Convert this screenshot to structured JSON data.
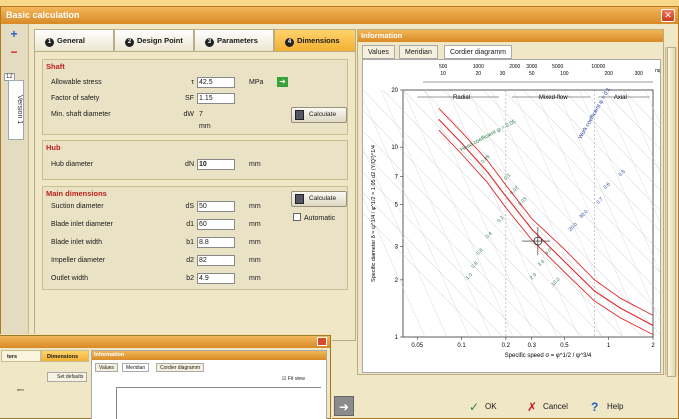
{
  "window": {
    "title": "Basic calculation",
    "close_glyph": "✕"
  },
  "lefttool": {
    "add": "+",
    "remove": "−",
    "version_counter": "12",
    "version_tab": "Version 1"
  },
  "tabs": [
    {
      "num": "1",
      "label": "General"
    },
    {
      "num": "2",
      "label": "Design Point"
    },
    {
      "num": "3",
      "label": "Parameters"
    },
    {
      "num": "4",
      "label": "Dimensions"
    }
  ],
  "shaft": {
    "title": "Shaft",
    "stress": {
      "label": "Allowable stress",
      "sym": "τ",
      "value": "42.5",
      "unit": "MPa"
    },
    "safety": {
      "label": "Factor of safety",
      "sym": "SF",
      "value": "1.15"
    },
    "min_diam": {
      "label": "Min. shaft diameter",
      "sym": "dW",
      "value": "7 mm"
    },
    "calc_label": "Calculate"
  },
  "hub": {
    "title": "Hub",
    "diameter": {
      "label": "Hub diameter",
      "sym": "dN",
      "value": "10",
      "unit": "mm"
    }
  },
  "main": {
    "title": "Main dimensions",
    "calc_label": "Calculate",
    "automatic_label": "Automatic",
    "rows": [
      {
        "label": "Suction diameter",
        "sym": "dS",
        "value": "50",
        "unit": "mm"
      },
      {
        "label": "Blade inlet diameter",
        "sym": "d1",
        "value": "60",
        "unit": "mm"
      },
      {
        "label": "Blade inlet width",
        "sym": "b1",
        "value": "8.8",
        "unit": "mm"
      },
      {
        "label": "Impeller diameter",
        "sym": "d2",
        "value": "82",
        "unit": "mm"
      },
      {
        "label": "Outlet width",
        "sym": "b2",
        "value": "4.9",
        "unit": "mm"
      }
    ]
  },
  "info": {
    "title": "Information",
    "tabs": [
      "Values",
      "Meridian",
      "Cordier diagramm"
    ]
  },
  "chart_data": {
    "type": "line",
    "xlabel": "Specific speed σ = φ^1/2 / ψ^3/4",
    "ylabel": "Specific diameter δ = ψ^1/4 / φ^1/2 = 1.05 d2 (Y/Q²)^1/4",
    "xscale": "log",
    "yscale": "log",
    "xlim": [
      0.04,
      2
    ],
    "ylim": [
      1,
      20
    ],
    "x_ticks": [
      "0.05",
      "0.1",
      "0.2",
      "0.3",
      "0.5",
      "1",
      "2"
    ],
    "y_ticks": [
      "1",
      "2",
      "3",
      "5",
      "7",
      "10",
      "20"
    ],
    "top_axis": {
      "label": "nq",
      "upper": [
        "500",
        "1000",
        "2000",
        "3000",
        "5000",
        "10000"
      ],
      "lower": [
        "10",
        "20",
        "30",
        "50",
        "100",
        "200",
        "300"
      ]
    },
    "regions": [
      "Radial",
      "Mixed-flow",
      "Axial"
    ],
    "annotations": [
      "Head coefficient ψ = 0.05",
      "Work coefficient ψ = 0.1"
    ],
    "curve_labels": [
      "0.05",
      "0.1",
      "0.02",
      "0.03",
      "0.2",
      "0.4",
      "0.6",
      "0.8",
      "1.0",
      "2.0",
      "3.0",
      "4.0",
      "10.0",
      "20.0",
      "30.0",
      "0.7",
      "0.6",
      "0.5"
    ],
    "operating_point": {
      "x": 0.33,
      "y": 3.2
    },
    "series": [
      {
        "name": "",
        "x": [
          0.07,
          0.1,
          0.15,
          0.2,
          0.3,
          0.5,
          0.8,
          1.2,
          2.0
        ],
        "y": [
          16,
          12,
          8.5,
          6.3,
          4.2,
          2.9,
          2.0,
          1.6,
          1.3
        ]
      },
      {
        "name": "",
        "x": [
          0.07,
          0.1,
          0.15,
          0.2,
          0.3,
          0.5,
          0.8,
          1.2,
          2.0
        ],
        "y": [
          14,
          10.5,
          7.4,
          5.5,
          3.7,
          2.5,
          1.75,
          1.42,
          1.15
        ]
      },
      {
        "name": "",
        "x": [
          0.07,
          0.1,
          0.15,
          0.2,
          0.3,
          0.5,
          0.8,
          1.2,
          2.0
        ],
        "y": [
          12.3,
          9.2,
          6.5,
          4.8,
          3.25,
          2.2,
          1.55,
          1.26,
          1.03
        ]
      }
    ]
  },
  "buttons": {
    "ok": "OK",
    "cancel": "Cancel",
    "help": "Help"
  },
  "thumb": {
    "tabs": [
      "ters",
      "Dimensions"
    ],
    "info_title": "Information",
    "info_tabs": [
      "Values",
      "Meridian",
      "Cordier diagramm"
    ],
    "set_defaults": "Set defaults",
    "fit_view": "Fit view",
    "unit": "mm"
  }
}
